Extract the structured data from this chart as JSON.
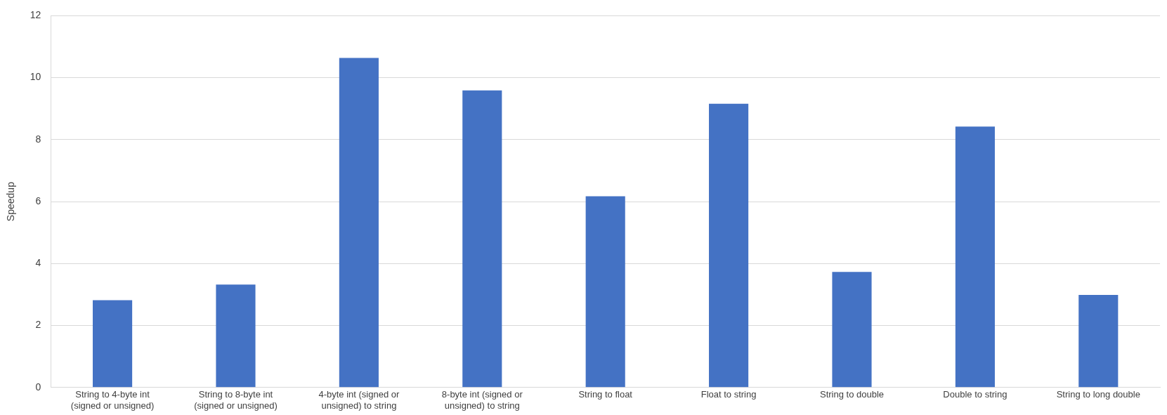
{
  "chart_data": {
    "type": "bar",
    "ylabel": "Speedup",
    "categories": [
      "String to 4-byte int (signed or unsigned)",
      "String to 8-byte int (signed or unsigned)",
      "4-byte int (signed or unsigned) to string",
      "8-byte int (signed or unsigned) to string",
      "String to float",
      "Float to string",
      "String to double",
      "Double to string",
      "String to long double"
    ],
    "values": [
      2.82,
      3.32,
      10.64,
      9.59,
      6.17,
      9.16,
      3.73,
      8.42,
      2.99
    ],
    "color": "#4472c4",
    "ylim": [
      0,
      12
    ],
    "yticks": [
      0,
      2,
      4,
      6,
      8,
      10,
      12
    ],
    "grid": "y",
    "legend": false
  }
}
